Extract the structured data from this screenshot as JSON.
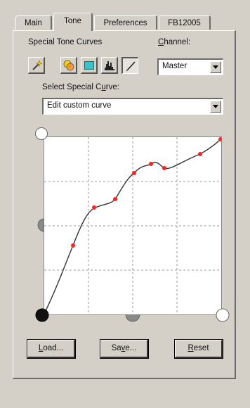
{
  "tabs": [
    {
      "label": "Main"
    },
    {
      "label": "Tone"
    },
    {
      "label": "Preferences"
    },
    {
      "label": "FB12005"
    }
  ],
  "active_tab": "Tone",
  "special_tone_curves_label": "Special Tone Curves",
  "channel": {
    "label": "Channel:",
    "selected": "Master"
  },
  "tool_icons": [
    "magic-wand-icon",
    "color-balance-icon",
    "rectangle-icon",
    "histogram-icon",
    "curve-pen-icon"
  ],
  "select_curve": {
    "label": "Select Special Curve:",
    "selected": "Edit custom curve"
  },
  "buttons": {
    "load": "Load...",
    "save": "Save...",
    "reset": "Reset"
  }
}
